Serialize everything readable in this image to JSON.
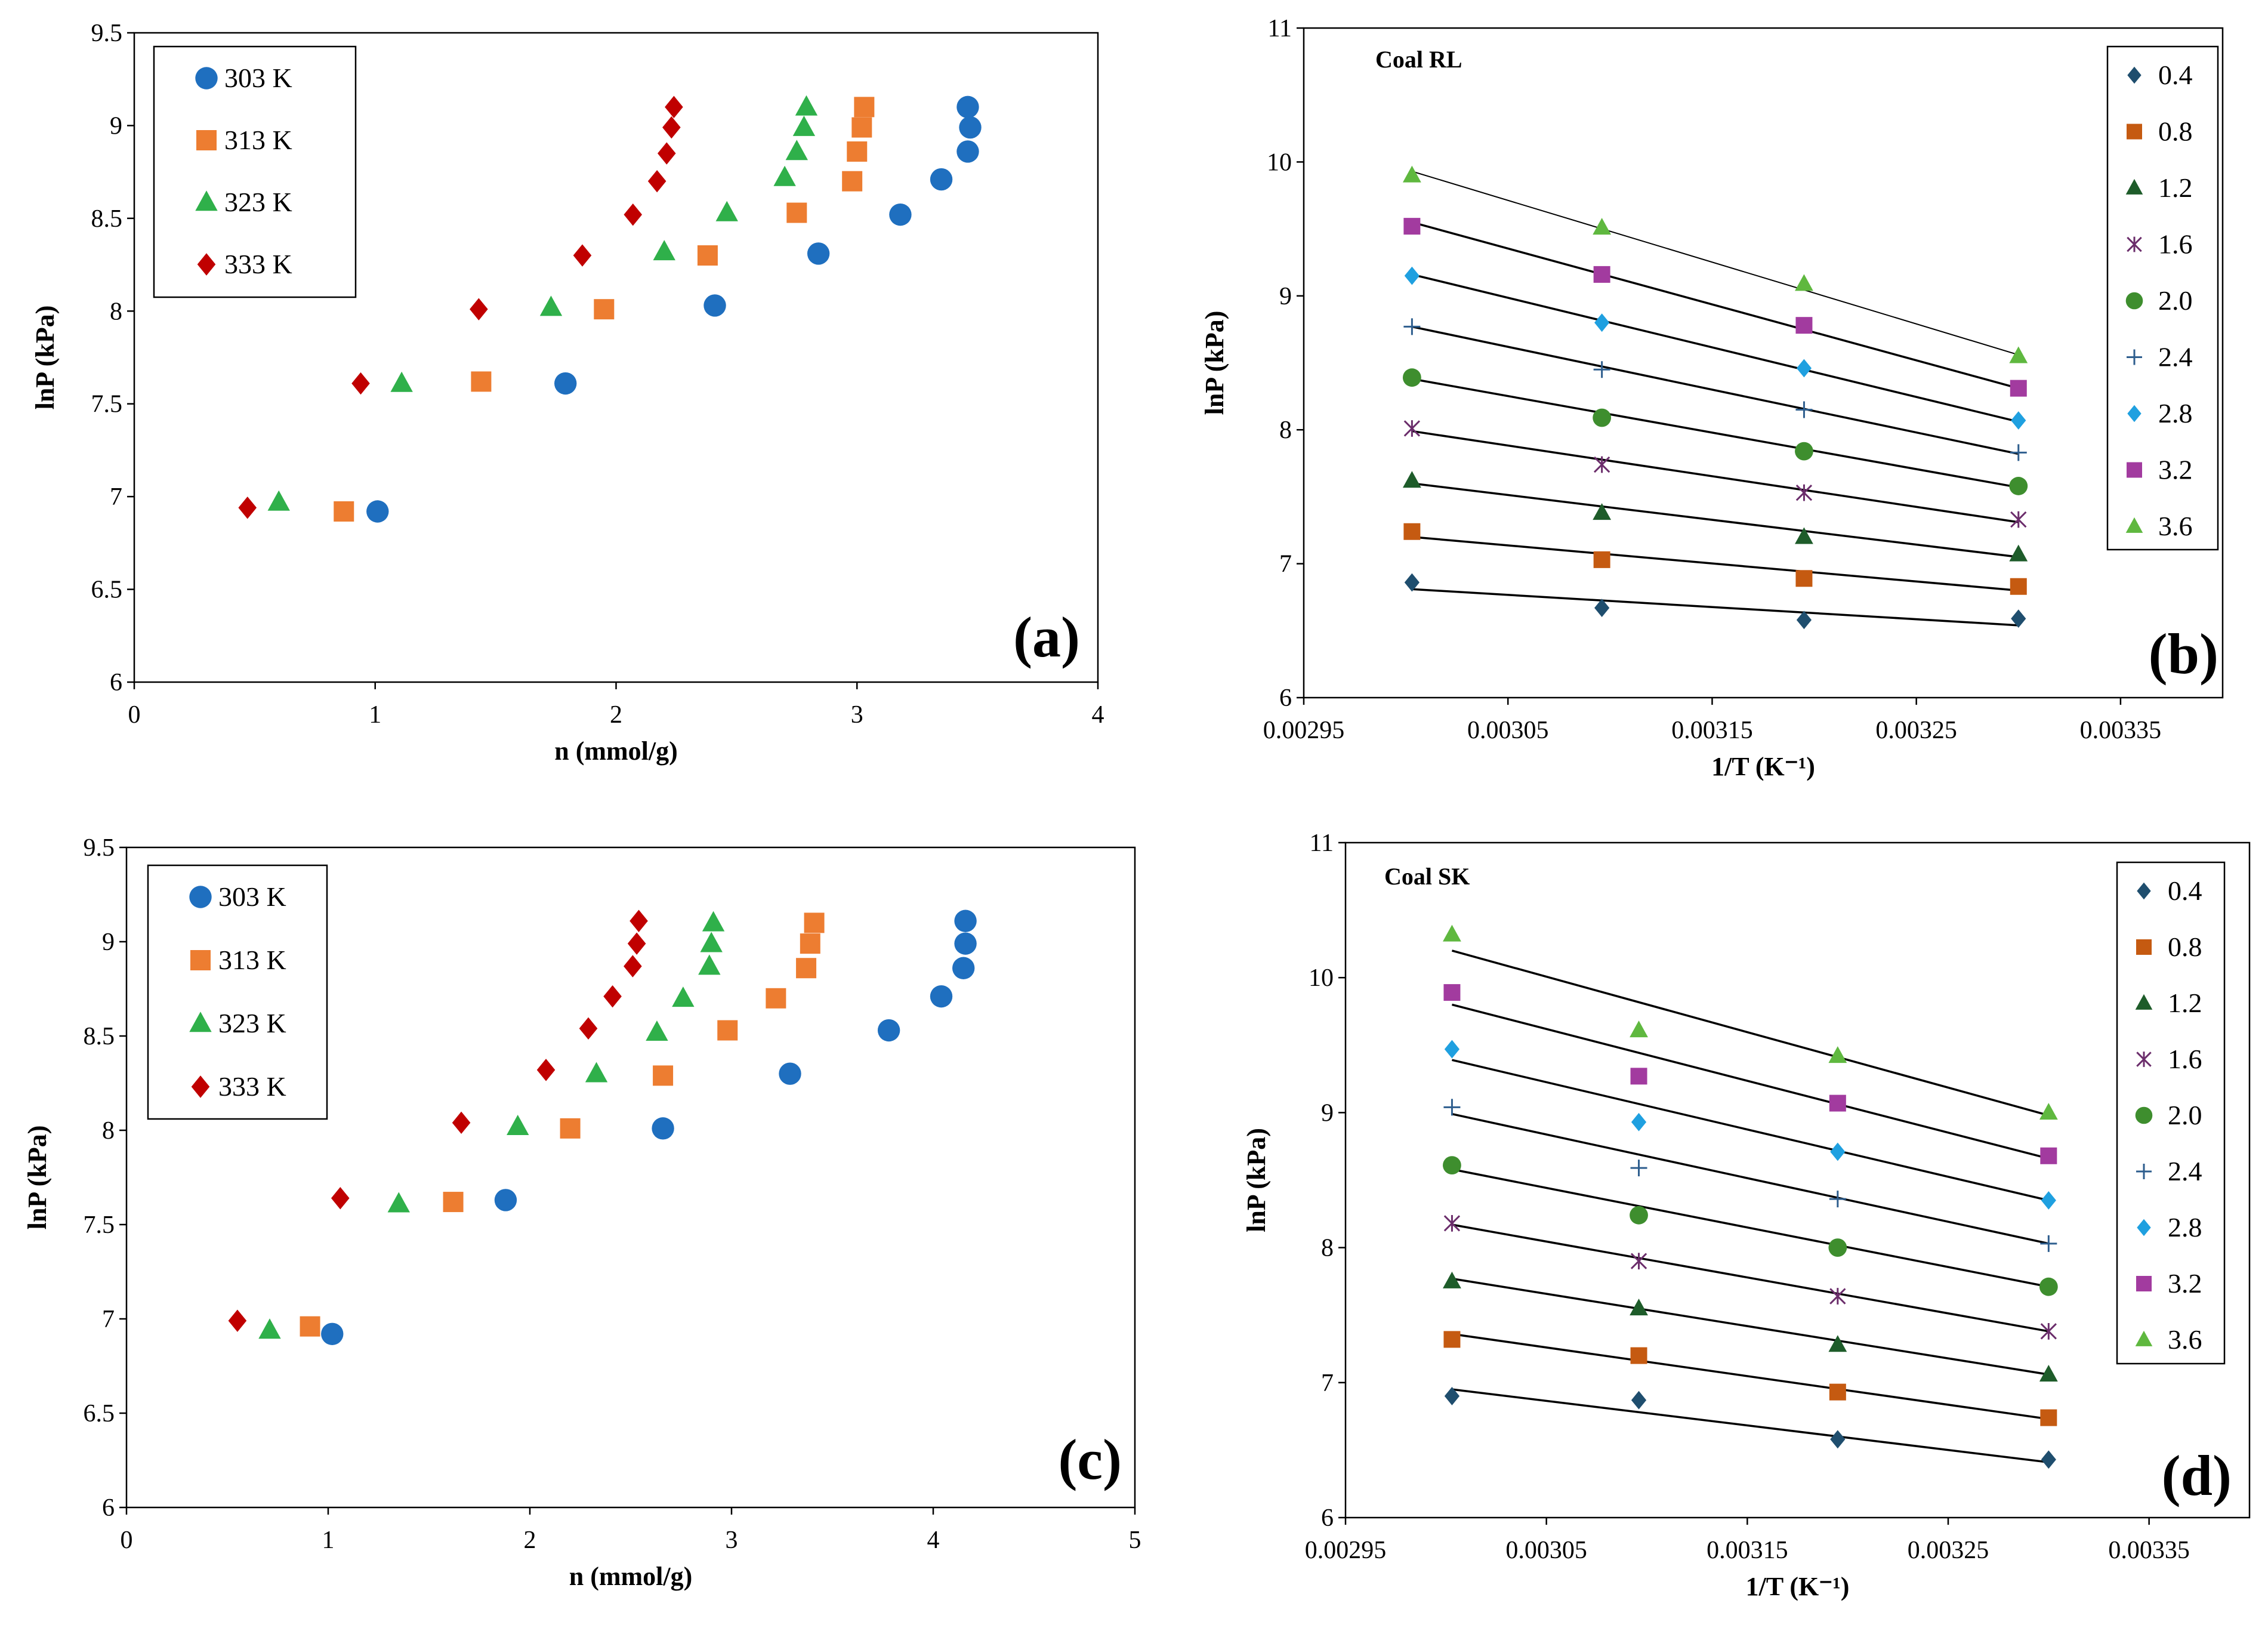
{
  "figure": {
    "panel_labels": [
      "(a)",
      "(b)",
      "(c)",
      "(d)"
    ]
  },
  "colors": {
    "303 K": "#1f6fbf",
    "313 K": "#ed7d31",
    "323 K": "#2fb04a",
    "333 K": "#c00000",
    "0.4": "#1f4e6e",
    "0.8": "#c55a11",
    "1.2": "#1e5c2a",
    "1.6": "#6b2d6b",
    "2.0": "#3e8e2e",
    "2.4": "#2e5e8e",
    "2.8": "#1fa0e0",
    "3.2": "#a23b9f",
    "3.6": "#5fb83f"
  },
  "chart_data": [
    {
      "type": "scatter",
      "panel": "(a)",
      "title": "",
      "xlabel": "n (mmol/g)",
      "ylabel": "lnP (kPa)",
      "xlim": [
        0,
        4
      ],
      "ylim": [
        6,
        9.5
      ],
      "xticks": [
        "0",
        "1",
        "2",
        "3",
        "4"
      ],
      "yticks": [
        "6",
        "6.5",
        "7",
        "7.5",
        "8",
        "8.5",
        "9",
        "9.5"
      ],
      "series": [
        {
          "name": "303 K",
          "marker": "circle",
          "points": [
            [
              1.01,
              6.92
            ],
            [
              1.79,
              7.61
            ],
            [
              2.41,
              8.03
            ],
            [
              2.84,
              8.31
            ],
            [
              3.18,
              8.52
            ],
            [
              3.35,
              8.71
            ],
            [
              3.46,
              8.86
            ],
            [
              3.47,
              8.99
            ],
            [
              3.46,
              9.1
            ]
          ]
        },
        {
          "name": "313 K",
          "marker": "square",
          "points": [
            [
              0.87,
              6.92
            ],
            [
              1.44,
              7.62
            ],
            [
              1.95,
              8.01
            ],
            [
              2.38,
              8.3
            ],
            [
              2.75,
              8.53
            ],
            [
              2.98,
              8.7
            ],
            [
              3.0,
              8.86
            ],
            [
              3.02,
              8.99
            ],
            [
              3.03,
              9.1
            ]
          ]
        },
        {
          "name": "323 K",
          "marker": "triangle",
          "points": [
            [
              0.6,
              6.97
            ],
            [
              1.11,
              7.61
            ],
            [
              1.73,
              8.02
            ],
            [
              2.2,
              8.32
            ],
            [
              2.46,
              8.53
            ],
            [
              2.7,
              8.72
            ],
            [
              2.75,
              8.86
            ],
            [
              2.78,
              8.99
            ],
            [
              2.79,
              9.1
            ]
          ]
        },
        {
          "name": "333 K",
          "marker": "diamond",
          "points": [
            [
              0.47,
              6.94
            ],
            [
              0.94,
              7.61
            ],
            [
              1.43,
              8.01
            ],
            [
              1.86,
              8.3
            ],
            [
              2.07,
              8.52
            ],
            [
              2.17,
              8.7
            ],
            [
              2.21,
              8.85
            ],
            [
              2.23,
              8.99
            ],
            [
              2.24,
              9.1
            ]
          ]
        }
      ]
    },
    {
      "type": "scatter",
      "panel": "(b)",
      "title": "Coal RL",
      "xlabel": "1/T (K⁻¹)",
      "ylabel": "lnP (kPa)",
      "xlim": [
        0.00295,
        0.0034
      ],
      "ylim": [
        6,
        11
      ],
      "xticks": [
        "0.00295",
        "0.00305",
        "0.00315",
        "0.00325",
        "0.00335"
      ],
      "yticks": [
        "6",
        "7",
        "8",
        "9",
        "10",
        "11"
      ],
      "x": [
        0.003003,
        0.003096,
        0.003195,
        0.0033
      ],
      "series": [
        {
          "name": "0.4",
          "marker": "diamond",
          "values": [
            6.86,
            6.67,
            6.58,
            6.59
          ],
          "fit": [
            6.81,
            6.54
          ]
        },
        {
          "name": "0.8",
          "marker": "square",
          "values": [
            7.24,
            7.03,
            6.89,
            6.83
          ],
          "fit": [
            7.2,
            6.8
          ]
        },
        {
          "name": "1.2",
          "marker": "triangle",
          "values": [
            7.62,
            7.38,
            7.2,
            7.07
          ],
          "fit": [
            7.6,
            7.05
          ]
        },
        {
          "name": "1.6",
          "marker": "star",
          "values": [
            8.01,
            7.74,
            7.53,
            7.33
          ],
          "fit": [
            7.99,
            7.31
          ]
        },
        {
          "name": "2.0",
          "marker": "circle",
          "values": [
            8.39,
            8.09,
            7.84,
            7.58
          ],
          "fit": [
            8.38,
            7.57
          ]
        },
        {
          "name": "2.4",
          "marker": "plus",
          "values": [
            8.77,
            8.45,
            8.15,
            7.83
          ],
          "fit": [
            8.77,
            7.82
          ]
        },
        {
          "name": "2.8",
          "marker": "diamond",
          "values": [
            9.15,
            8.8,
            8.46,
            8.07
          ],
          "fit": [
            9.16,
            8.06
          ]
        },
        {
          "name": "3.2",
          "marker": "square",
          "values": [
            9.52,
            9.16,
            8.78,
            8.31
          ],
          "fit": [
            9.55,
            8.31
          ]
        },
        {
          "name": "3.6",
          "marker": "triangle",
          "values": [
            9.9,
            9.51,
            9.09,
            8.55
          ],
          "fit": [
            9.93,
            8.56
          ]
        }
      ]
    },
    {
      "type": "scatter",
      "panel": "(c)",
      "title": "",
      "xlabel": "n (mmol/g)",
      "ylabel": "lnP (kPa)",
      "xlim": [
        0,
        5
      ],
      "ylim": [
        6,
        9.5
      ],
      "xticks": [
        "0",
        "1",
        "2",
        "3",
        "4",
        "5"
      ],
      "yticks": [
        "6",
        "6.5",
        "7",
        "7.5",
        "8",
        "8.5",
        "9",
        "9.5"
      ],
      "series": [
        {
          "name": "303 K",
          "marker": "circle",
          "points": [
            [
              1.02,
              6.92
            ],
            [
              1.88,
              7.63
            ],
            [
              2.66,
              8.01
            ],
            [
              3.29,
              8.3
            ],
            [
              3.78,
              8.53
            ],
            [
              4.04,
              8.71
            ],
            [
              4.15,
              8.86
            ],
            [
              4.16,
              8.99
            ],
            [
              4.16,
              9.11
            ]
          ]
        },
        {
          "name": "313 K",
          "marker": "square",
          "points": [
            [
              0.91,
              6.96
            ],
            [
              1.62,
              7.62
            ],
            [
              2.2,
              8.01
            ],
            [
              2.66,
              8.29
            ],
            [
              2.98,
              8.53
            ],
            [
              3.22,
              8.7
            ],
            [
              3.37,
              8.86
            ],
            [
              3.39,
              8.99
            ],
            [
              3.41,
              9.1
            ]
          ]
        },
        {
          "name": "323 K",
          "marker": "triangle",
          "points": [
            [
              0.71,
              6.94
            ],
            [
              1.35,
              7.61
            ],
            [
              1.94,
              8.02
            ],
            [
              2.33,
              8.3
            ],
            [
              2.63,
              8.52
            ],
            [
              2.76,
              8.7
            ],
            [
              2.89,
              8.87
            ],
            [
              2.9,
              8.99
            ],
            [
              2.91,
              9.1
            ]
          ]
        },
        {
          "name": "333 K",
          "marker": "diamond",
          "points": [
            [
              0.55,
              6.99
            ],
            [
              1.06,
              7.64
            ],
            [
              1.66,
              8.04
            ],
            [
              2.08,
              8.32
            ],
            [
              2.29,
              8.54
            ],
            [
              2.41,
              8.71
            ],
            [
              2.51,
              8.87
            ],
            [
              2.53,
              8.99
            ],
            [
              2.54,
              9.11
            ]
          ]
        }
      ]
    },
    {
      "type": "scatter",
      "panel": "(d)",
      "title": "Coal SK",
      "xlabel": "1/T (K⁻¹)",
      "ylabel": "lnP (kPa)",
      "xlim": [
        0.00295,
        0.0034
      ],
      "ylim": [
        6,
        11
      ],
      "xticks": [
        "0.00295",
        "0.00305",
        "0.00315",
        "0.00325",
        "0.00335"
      ],
      "yticks": [
        "6",
        "7",
        "8",
        "9",
        "10",
        "11"
      ],
      "x": [
        0.003003,
        0.003096,
        0.003195,
        0.0033
      ],
      "series": [
        {
          "name": "0.4",
          "marker": "diamond",
          "values": [
            6.9,
            6.87,
            6.58,
            6.43
          ],
          "fit": [
            6.95,
            6.41
          ]
        },
        {
          "name": "0.8",
          "marker": "square",
          "values": [
            7.32,
            7.2,
            6.93,
            6.74
          ],
          "fit": [
            7.36,
            6.73
          ]
        },
        {
          "name": "1.2",
          "marker": "triangle",
          "values": [
            7.75,
            7.55,
            7.28,
            7.06
          ],
          "fit": [
            7.77,
            7.06
          ]
        },
        {
          "name": "1.6",
          "marker": "star",
          "values": [
            8.18,
            7.9,
            7.64,
            7.38
          ],
          "fit": [
            8.17,
            7.38
          ]
        },
        {
          "name": "2.0",
          "marker": "circle",
          "values": [
            8.61,
            8.24,
            8.0,
            7.71
          ],
          "fit": [
            8.58,
            7.71
          ]
        },
        {
          "name": "2.4",
          "marker": "plus",
          "values": [
            9.04,
            8.59,
            8.36,
            8.03
          ],
          "fit": [
            8.99,
            8.03
          ]
        },
        {
          "name": "2.8",
          "marker": "diamond",
          "values": [
            9.47,
            8.93,
            8.71,
            8.35
          ],
          "fit": [
            9.39,
            8.35
          ]
        },
        {
          "name": "3.2",
          "marker": "square",
          "values": [
            9.89,
            9.27,
            9.07,
            8.68
          ],
          "fit": [
            9.8,
            8.66
          ]
        },
        {
          "name": "3.6",
          "marker": "triangle",
          "values": [
            10.32,
            9.61,
            9.42,
            9.0
          ],
          "fit": [
            10.2,
            8.98
          ]
        }
      ]
    }
  ]
}
